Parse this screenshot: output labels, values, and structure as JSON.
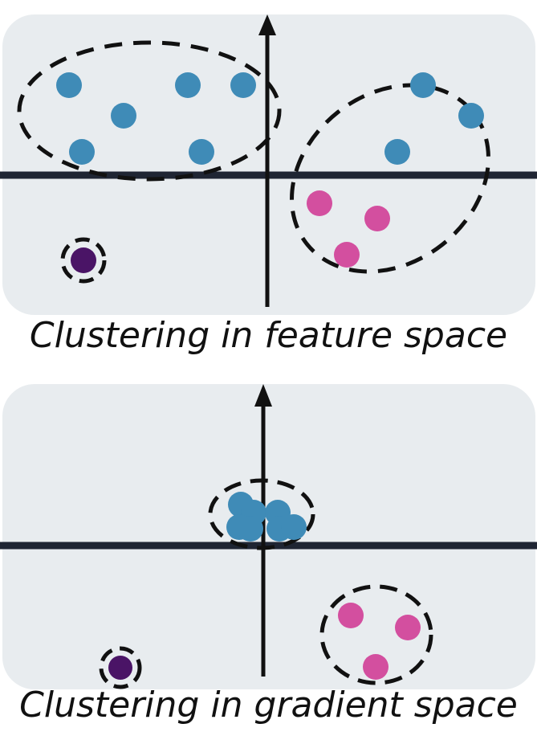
{
  "colors": {
    "panel_bg": "#e8ecef",
    "axis": "#1f2533",
    "blue_point": "#3f8bb7",
    "pink_point": "#d34f9f",
    "purple_point": "#4a1466",
    "cluster_outline": "#111111"
  },
  "panels": [
    {
      "caption": "Clustering in feature space",
      "clusters": [
        {
          "name": "blue-cluster",
          "color": "blue_point"
        },
        {
          "name": "mixed-cluster",
          "color": "blue_point"
        },
        {
          "name": "outlier-cluster",
          "color": "purple_point"
        }
      ]
    },
    {
      "caption": "Clustering in gradient space",
      "clusters": [
        {
          "name": "blue-cluster",
          "color": "blue_point"
        },
        {
          "name": "pink-cluster",
          "color": "pink_point"
        },
        {
          "name": "outlier-cluster",
          "color": "purple_point"
        }
      ]
    }
  ]
}
